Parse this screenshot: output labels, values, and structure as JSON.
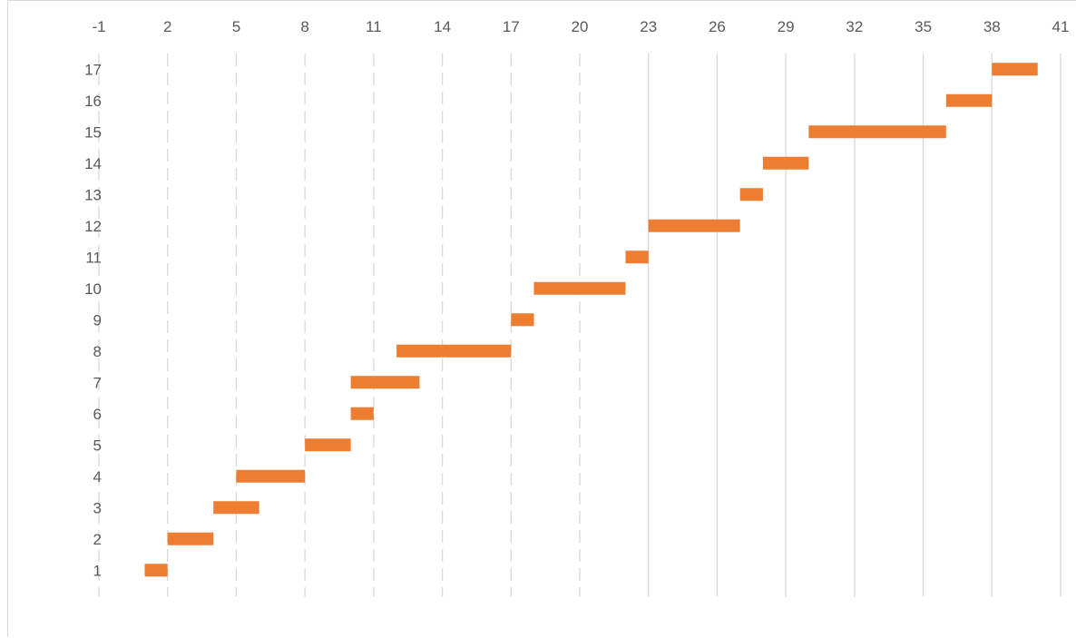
{
  "chart_data": {
    "type": "bar",
    "orientation": "horizontal-floating",
    "title": "",
    "xlabel": "",
    "ylabel": "",
    "x_axis_position": "top",
    "x_ticks": [
      "-1",
      "2",
      "5",
      "8",
      "11",
      "14",
      "17",
      "20",
      "23",
      "26",
      "29",
      "32",
      "35",
      "38",
      "41"
    ],
    "xlim": [
      -1,
      41
    ],
    "categories": [
      "1",
      "2",
      "3",
      "4",
      "5",
      "6",
      "7",
      "8",
      "9",
      "10",
      "11",
      "12",
      "13",
      "14",
      "15",
      "16",
      "17"
    ],
    "bars": [
      {
        "category": "1",
        "start": 1,
        "end": 2
      },
      {
        "category": "2",
        "start": 2,
        "end": 4
      },
      {
        "category": "3",
        "start": 4,
        "end": 6
      },
      {
        "category": "4",
        "start": 5,
        "end": 8
      },
      {
        "category": "5",
        "start": 8,
        "end": 10
      },
      {
        "category": "6",
        "start": 10,
        "end": 11
      },
      {
        "category": "7",
        "start": 10,
        "end": 13
      },
      {
        "category": "8",
        "start": 12,
        "end": 17
      },
      {
        "category": "9",
        "start": 17,
        "end": 18
      },
      {
        "category": "10",
        "start": 18,
        "end": 22
      },
      {
        "category": "11",
        "start": 22,
        "end": 23
      },
      {
        "category": "12",
        "start": 23,
        "end": 27
      },
      {
        "category": "13",
        "start": 27,
        "end": 28
      },
      {
        "category": "14",
        "start": 28,
        "end": 30
      },
      {
        "category": "15",
        "start": 30,
        "end": 36
      },
      {
        "category": "16",
        "start": 36,
        "end": 38
      },
      {
        "category": "17",
        "start": 38,
        "end": 40
      }
    ],
    "gridlines": {
      "vertical": true,
      "dashed_before": 23
    },
    "legend": "none",
    "colors": {
      "bar": "#ED7D31",
      "grid": "#d9d9d9",
      "text": "#595959"
    }
  }
}
